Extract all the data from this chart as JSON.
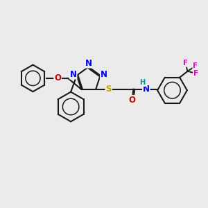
{
  "background_color": "#ebebeb",
  "bond_color": "#1a1a1a",
  "figsize": [
    3.0,
    3.0
  ],
  "dpi": 100,
  "atom_colors": {
    "N": "#0000ee",
    "O": "#cc0000",
    "S": "#bbaa00",
    "F": "#ee00cc",
    "H": "#009999",
    "C": "#1a1a1a"
  },
  "lw": 1.5,
  "fs": 8.5
}
